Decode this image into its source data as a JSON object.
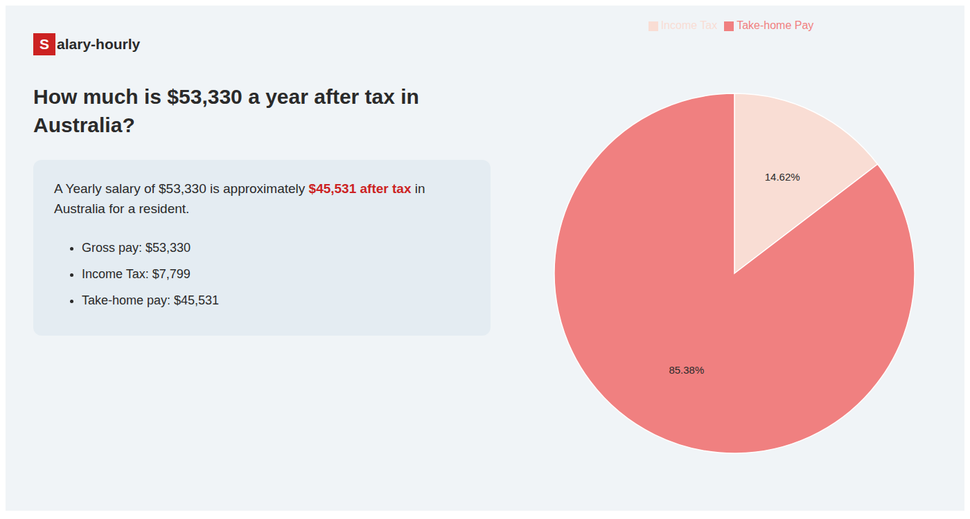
{
  "chart_data": {
    "type": "pie",
    "title": "How much is $53,330 a year after tax in\nAustralia?",
    "categories": [
      "Income Tax",
      "Take-home Pay"
    ],
    "values": [
      14.62,
      85.38
    ],
    "value_labels": [
      "14.62%",
      "85.38%"
    ],
    "colors": [
      "#f9ddd4",
      "#f08080"
    ],
    "data_labels": true,
    "legend": "top",
    "annotations": [
      {
        "text": "S",
        "color": "#cc2222"
      },
      {
        "text": "alary-hourly"
      },
      {
        "text": "A Yearly salary of $53,330 is approximately "
      },
      {
        "text": "$45,531 after tax",
        "color": "#cc2222"
      },
      {
        "text": " in"
      },
      {
        "text": "Australia for a resident."
      },
      {
        "text": "Gross pay: $53,330"
      },
      {
        "text": "Income Tax: $7,799"
      },
      {
        "text": "Take-home pay: $45,531"
      }
    ]
  }
}
